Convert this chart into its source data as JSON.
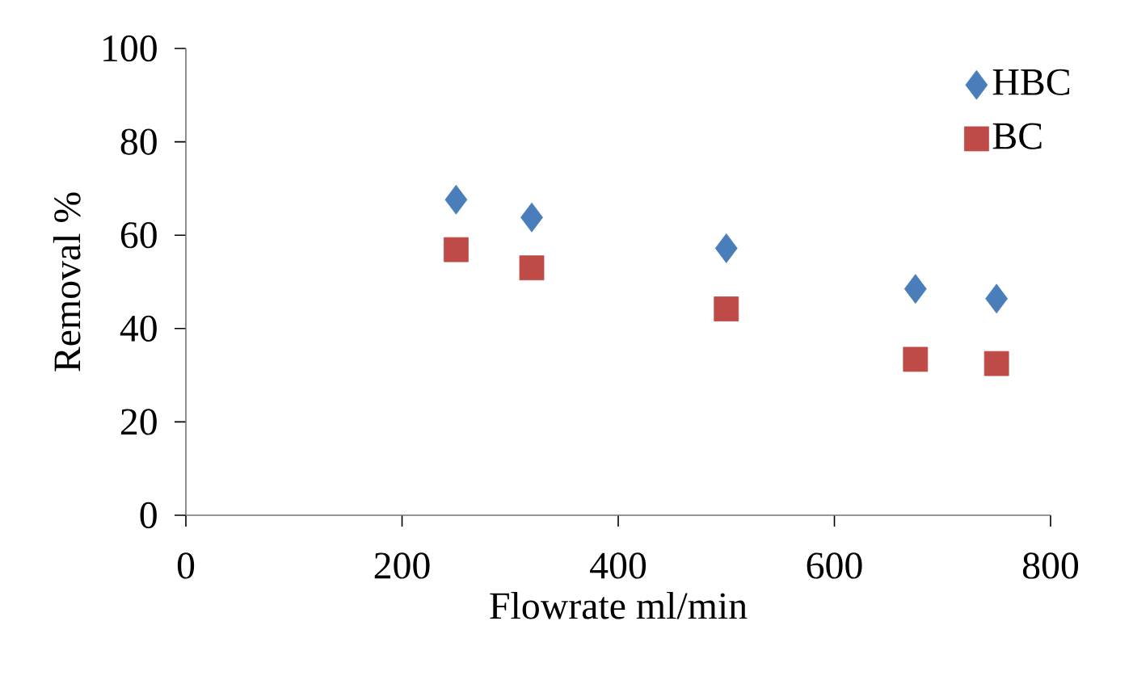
{
  "chart_data": {
    "type": "scatter",
    "xlabel": "Flowrate  ml/min",
    "ylabel": "Removal  %",
    "xlim": [
      0,
      800
    ],
    "ylim": [
      0,
      100
    ],
    "xticks": [
      0,
      200,
      400,
      600,
      800
    ],
    "yticks": [
      0,
      20,
      40,
      60,
      80,
      100
    ],
    "grid": false,
    "legend": "top right",
    "series": [
      {
        "name": "HBC",
        "color": "#4a7ebb",
        "marker": "diamond",
        "x": [
          250,
          320,
          500,
          675,
          750
        ],
        "values": [
          67.6,
          63.8,
          57.2,
          48.5,
          46.4
        ]
      },
      {
        "name": "BC",
        "color": "#be4b48",
        "marker": "square",
        "x": [
          250,
          320,
          500,
          675,
          750
        ],
        "values": [
          56.9,
          53.0,
          44.2,
          33.4,
          32.5
        ]
      }
    ]
  }
}
